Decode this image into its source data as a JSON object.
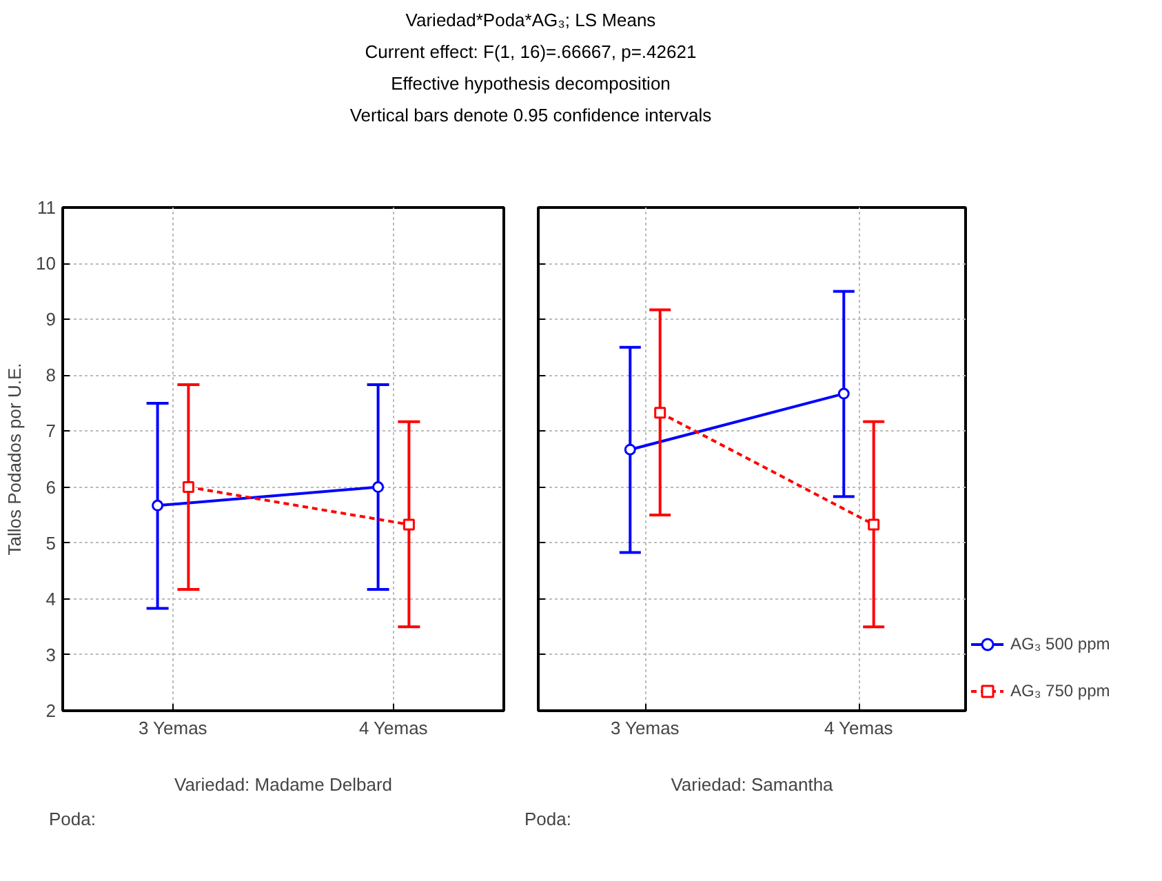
{
  "chart_data": [
    {
      "type": "line",
      "title": "Variedad*Poda*AG₃; LS Means",
      "subtitle": "Current effect: F(1, 16)=.66667, p=.42621\nEffective hypothesis decomposition\nVertical bars denote 0.95 confidence intervals",
      "ylabel": "Tallos Podados por U.E.",
      "xlabel": "Variedad: Madame Delbard",
      "annotations": [
        "Poda:"
      ],
      "categories": [
        "3 Yemas",
        "4 Yemas"
      ],
      "ylim": [
        2,
        11
      ],
      "yticks": [
        2,
        3,
        4,
        5,
        6,
        7,
        8,
        9,
        10,
        11
      ],
      "grid": true,
      "series": [
        {
          "color": "#0000ff",
          "marker": "circle",
          "line_style": "solid",
          "values": [
            5.67,
            6.0
          ],
          "errors": [
            [
              3.83,
              7.5
            ],
            [
              4.17,
              7.83
            ]
          ]
        },
        {
          "color": "#ff0000",
          "marker": "square",
          "line_style": "dashed",
          "values": [
            6.0,
            5.33
          ],
          "errors": [
            [
              4.17,
              7.83
            ],
            [
              3.5,
              7.17
            ]
          ]
        }
      ]
    },
    {
      "type": "line",
      "xlabel": "Variedad: Samantha",
      "annotations": [
        "Poda:"
      ],
      "categories": [
        "3 Yemas",
        "4 Yemas"
      ],
      "ylim": [
        2,
        11
      ],
      "yticks": [
        2,
        3,
        4,
        5,
        6,
        7,
        8,
        9,
        10,
        11
      ],
      "tick_labels": "x",
      "grid": true,
      "legend": "bottom right",
      "series": [
        {
          "name": "AG₃ 500 ppm",
          "color": "#0000ff",
          "marker": "circle",
          "line_style": "solid",
          "values": [
            6.67,
            7.67
          ],
          "errors": [
            [
              4.83,
              8.5
            ],
            [
              5.83,
              9.5
            ]
          ]
        },
        {
          "name": "AG₃ 750 ppm",
          "color": "#ff0000",
          "marker": "square",
          "line_style": "dashed",
          "values": [
            7.33,
            5.33
          ],
          "errors": [
            [
              5.5,
              9.17
            ],
            [
              3.5,
              7.17
            ]
          ]
        }
      ]
    }
  ]
}
